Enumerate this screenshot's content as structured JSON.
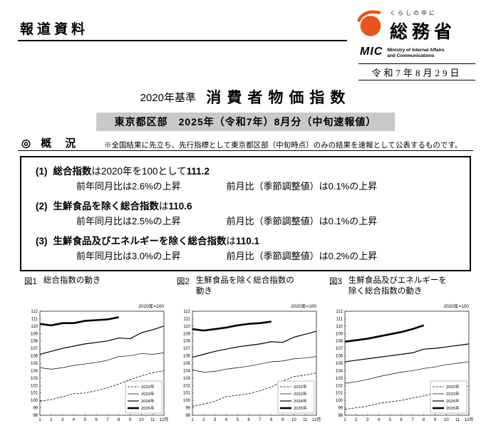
{
  "colors": {
    "brand": "#e8541a",
    "subtitle_bg": "#c9c9c9"
  },
  "header": {
    "doc_type": "報道資料",
    "logo": {
      "tagline": "くらしの中に",
      "ministry": "総務省",
      "mic": "MIC",
      "mic_full_line1": "Ministry of Internal Affairs",
      "mic_full_line2": "and Communications"
    },
    "date": "令和7年8月29日"
  },
  "title": {
    "prefix": "2020年基準",
    "main": "消費者物価指数"
  },
  "subtitle": "東京都区部　2025年（令和7年）8月分（中旬速報値）",
  "overview": {
    "mark": "◎",
    "heading": "概　況",
    "note": "※全国結果に先立ち、先行指標として東京都区部（中旬時点）のみの結果を速報として公表するものです。"
  },
  "summary_box": {
    "items": [
      {
        "no": "(1)",
        "name": "総合指数",
        "mid": "は2020年を100として",
        "value": "111.2",
        "yoy": "前年同月比は2.6%の上昇",
        "mom": "前月比（季節調整値）は0.1%の上昇"
      },
      {
        "no": "(2)",
        "name": "生鮮食品を除く総合指数",
        "mid": "は",
        "value": "110.6",
        "yoy": "前年同月比は2.5%の上昇",
        "mom": "前月比（季節調整値）は0.1%の上昇"
      },
      {
        "no": "(3)",
        "name": "生鮮食品及びエネルギーを除く総合指数",
        "mid": "は",
        "value": "110.1",
        "yoy": "前年同月比は3.0%の上昇",
        "mom": "前月比（季節調整値）は0.2%の上昇"
      }
    ]
  },
  "figures": [
    {
      "no": "図1",
      "caption": "総合指数の動き"
    },
    {
      "no": "図2",
      "caption": "生鮮食品を除く総合指数の動き"
    },
    {
      "no": "図3",
      "caption": "生鮮食品及びエネルギーを除く総合指数の動き"
    }
  ],
  "chart_data": [
    {
      "type": "line",
      "title": "図1 総合指数の動き",
      "unit_label": "2020年=100",
      "xlabel": "月",
      "x": [
        1,
        2,
        3,
        4,
        5,
        6,
        7,
        8,
        9,
        10,
        11,
        12
      ],
      "x_tick_labels": [
        "1",
        "2",
        "3",
        "4",
        "5",
        "6",
        "7",
        "8",
        "9",
        "10",
        "11",
        "12月"
      ],
      "ylim": [
        98,
        112
      ],
      "legend_position": "lower right",
      "series": [
        {
          "name": "2022年",
          "style": "dashed",
          "values": [
            99.9,
            100.1,
            100.5,
            100.9,
            101.0,
            101.3,
            101.7,
            102.2,
            102.8,
            103.3,
            103.7,
            104.0
          ]
        },
        {
          "name": "2023年",
          "style": "thin",
          "values": [
            104.4,
            104.2,
            104.4,
            104.7,
            104.9,
            105.1,
            105.4,
            105.9,
            106.0,
            106.3,
            106.2,
            106.4
          ]
        },
        {
          "name": "2024年",
          "style": "solid",
          "values": [
            106.2,
            106.6,
            107.0,
            107.3,
            107.6,
            107.8,
            108.0,
            108.4,
            108.3,
            109.1,
            109.5,
            110.0
          ]
        },
        {
          "name": "2025年",
          "style": "thick",
          "values": [
            110.3,
            110.1,
            110.4,
            110.4,
            110.7,
            110.8,
            110.9,
            111.2
          ]
        }
      ]
    },
    {
      "type": "line",
      "title": "図2 生鮮食品を除く総合指数の動き",
      "unit_label": "2020年=100",
      "xlabel": "月",
      "x": [
        1,
        2,
        3,
        4,
        5,
        6,
        7,
        8,
        9,
        10,
        11,
        12
      ],
      "x_tick_labels": [
        "1",
        "2",
        "3",
        "4",
        "5",
        "6",
        "7",
        "8",
        "9",
        "10",
        "11",
        "12月"
      ],
      "ylim": [
        98,
        112
      ],
      "legend_position": "lower right",
      "series": [
        {
          "name": "2022年",
          "style": "dashed",
          "values": [
            99.2,
            99.5,
            99.9,
            100.5,
            100.7,
            100.9,
            101.3,
            101.8,
            102.6,
            103.2,
            103.4,
            103.7
          ]
        },
        {
          "name": "2023年",
          "style": "thin",
          "values": [
            104.1,
            103.8,
            103.9,
            104.2,
            104.4,
            104.6,
            104.9,
            105.2,
            105.3,
            105.6,
            105.7,
            105.9
          ]
        },
        {
          "name": "2024年",
          "style": "solid",
          "values": [
            105.8,
            106.2,
            106.6,
            106.9,
            107.2,
            107.4,
            107.6,
            107.9,
            107.8,
            108.5,
            108.9,
            109.3
          ]
        },
        {
          "name": "2025年",
          "style": "thick",
          "values": [
            109.6,
            109.4,
            109.6,
            109.8,
            110.1,
            110.3,
            110.4,
            110.6
          ]
        }
      ]
    },
    {
      "type": "line",
      "title": "図3 生鮮食品及びエネルギーを除く総合指数の動き",
      "unit_label": "2020年=100",
      "xlabel": "月",
      "x": [
        1,
        2,
        3,
        4,
        5,
        6,
        7,
        8,
        9,
        10,
        11,
        12
      ],
      "x_tick_labels": [
        "1",
        "2",
        "3",
        "4",
        "5",
        "6",
        "7",
        "8",
        "9",
        "10",
        "11",
        "12月"
      ],
      "ylim": [
        98,
        112
      ],
      "legend_position": "lower right",
      "series": [
        {
          "name": "2022年",
          "style": "dashed",
          "values": [
            98.8,
            99.0,
            99.2,
            99.6,
            99.8,
            100.0,
            100.3,
            100.6,
            101.0,
            101.4,
            101.7,
            101.9
          ]
        },
        {
          "name": "2023年",
          "style": "thin",
          "values": [
            102.3,
            102.5,
            102.8,
            103.2,
            103.5,
            103.8,
            104.0,
            104.3,
            104.5,
            104.8,
            105.0,
            105.2
          ]
        },
        {
          "name": "2024年",
          "style": "solid",
          "values": [
            105.2,
            105.4,
            105.6,
            105.8,
            106.0,
            106.2,
            106.4,
            106.9,
            107.0,
            107.2,
            107.4,
            107.6
          ]
        },
        {
          "name": "2025年",
          "style": "thick",
          "values": [
            107.9,
            108.1,
            108.3,
            108.6,
            108.9,
            109.2,
            109.6,
            110.1
          ]
        }
      ]
    }
  ]
}
